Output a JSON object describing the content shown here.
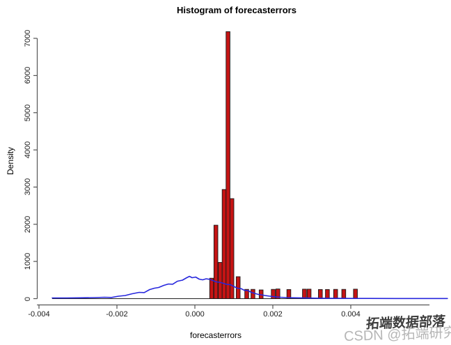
{
  "watermarks": {
    "light": "CSDN @拓端研究室",
    "dark": "拓端数据部落"
  },
  "chart_data": {
    "type": "bar",
    "subtype": "histogram-with-density-line",
    "title": "Histogram of forecasterrors",
    "xlabel": "forecasterrors",
    "ylabel": "Density",
    "xlim": [
      -0.00405,
      0.00602
    ],
    "ylim": [
      0,
      7000
    ],
    "x_ticks": [
      -0.004,
      -0.002,
      0.0,
      0.002,
      0.004
    ],
    "x_tick_labels": [
      "-0.004",
      "-0.002",
      "0.000",
      "0.002",
      "0.004"
    ],
    "y_ticks": [
      0,
      1000,
      2000,
      3000,
      4000,
      5000,
      6000,
      7000
    ],
    "y_tick_labels": [
      "0",
      "1000",
      "2000",
      "3000",
      "4000",
      "5000",
      "6000",
      "7000"
    ],
    "grid": false,
    "legend": "none",
    "bar_color": "#c41414",
    "bar_border_color": "#1a1a1a",
    "line_color": "#2727dd",
    "axis_color": "#555555",
    "baseline_color": "#222222",
    "bin_width": 0.0001,
    "baseline_range": [
      -0.00366,
      0.00648
    ],
    "bars": [
      {
        "x0": 0.00038,
        "density": 550
      },
      {
        "x0": 0.00049,
        "density": 1975
      },
      {
        "x0": 0.0006,
        "density": 975
      },
      {
        "x0": 0.0007,
        "density": 2935
      },
      {
        "x0": 0.0008,
        "density": 7180
      },
      {
        "x0": 0.0009,
        "density": 2690
      },
      {
        "x0": 0.00106,
        "density": 590
      },
      {
        "x0": 0.00128,
        "density": 250
      },
      {
        "x0": 0.00144,
        "density": 250
      },
      {
        "x0": 0.00165,
        "density": 235
      },
      {
        "x0": 0.00196,
        "density": 250
      },
      {
        "x0": 0.00208,
        "density": 260
      },
      {
        "x0": 0.00236,
        "density": 245
      },
      {
        "x0": 0.00276,
        "density": 255
      },
      {
        "x0": 0.00288,
        "density": 255
      },
      {
        "x0": 0.00317,
        "density": 245
      },
      {
        "x0": 0.00335,
        "density": 245
      },
      {
        "x0": 0.00356,
        "density": 250
      },
      {
        "x0": 0.00377,
        "density": 250
      },
      {
        "x0": 0.00407,
        "density": 255
      }
    ],
    "density_line": [
      [
        -0.00366,
        19
      ],
      [
        -0.0033,
        19
      ],
      [
        -0.00295,
        22
      ],
      [
        -0.00259,
        28
      ],
      [
        -0.00232,
        37
      ],
      [
        -0.00214,
        32
      ],
      [
        -0.00196,
        66
      ],
      [
        -0.00179,
        84
      ],
      [
        -0.00161,
        131
      ],
      [
        -0.00143,
        169
      ],
      [
        -0.0013,
        163
      ],
      [
        -0.00116,
        243
      ],
      [
        -0.00104,
        281
      ],
      [
        -0.00093,
        300
      ],
      [
        -0.0008,
        356
      ],
      [
        -0.00068,
        393
      ],
      [
        -0.00057,
        388
      ],
      [
        -0.00045,
        468
      ],
      [
        -0.00032,
        496
      ],
      [
        -0.00021,
        562
      ],
      [
        -0.00014,
        599
      ],
      [
        -7e-05,
        562
      ],
      [
        2e-05,
        581
      ],
      [
        0.00011,
        524
      ],
      [
        0.0002,
        506
      ],
      [
        0.00029,
        534
      ],
      [
        0.00038,
        519
      ],
      [
        0.00046,
        487
      ],
      [
        0.00055,
        450
      ],
      [
        0.00064,
        440
      ],
      [
        0.00073,
        412
      ],
      [
        0.00082,
        384
      ],
      [
        0.00091,
        375
      ],
      [
        0.001,
        328
      ],
      [
        0.00109,
        281
      ],
      [
        0.00118,
        272
      ],
      [
        0.00127,
        225
      ],
      [
        0.00136,
        215
      ],
      [
        0.00145,
        169
      ],
      [
        0.00154,
        140
      ],
      [
        0.00163,
        112
      ],
      [
        0.00171,
        103
      ],
      [
        0.0018,
        84
      ],
      [
        0.00193,
        66
      ],
      [
        0.00205,
        51
      ],
      [
        0.0022,
        37
      ],
      [
        0.00236,
        28
      ],
      [
        0.00259,
        22
      ],
      [
        0.00286,
        17
      ],
      [
        0.00321,
        11
      ],
      [
        0.00375,
        7
      ],
      [
        0.00446,
        6
      ],
      [
        0.00518,
        4
      ],
      [
        0.00589,
        4
      ],
      [
        0.00648,
        4
      ]
    ]
  }
}
